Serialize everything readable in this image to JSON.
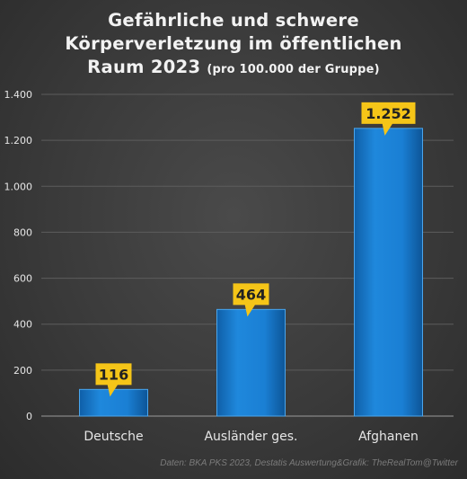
{
  "title": {
    "line1": "Gefährliche und schwere",
    "line2": "Körperverletzung im öffentlichen",
    "line3_main": "Raum 2023",
    "line3_sub": "(pro 100.000 der Gruppe)"
  },
  "source": "Daten: BKA PKS 2023, Destatis  Auswertung&Grafik: TheRealTom@Twitter",
  "colors": {
    "bar": "#1a7fd4",
    "label_bg": "#f5c518",
    "label_text": "#222222",
    "axis_text": "#e6e6e6",
    "grid": "#5c5c5c"
  },
  "chart_data": {
    "type": "bar",
    "categories": [
      "Deutsche",
      "Ausländer ges.",
      "Afghanen"
    ],
    "values": [
      116,
      464,
      1252
    ],
    "value_labels": [
      "116",
      "464",
      "1.252"
    ],
    "ylim": [
      0,
      1400
    ],
    "yticks": [
      0,
      200,
      400,
      600,
      800,
      1000,
      1200,
      1400
    ],
    "ytick_labels": [
      "0",
      "200",
      "400",
      "600",
      "800",
      "1.000",
      "1.200",
      "1.400"
    ],
    "grid": true,
    "legend": "none"
  }
}
